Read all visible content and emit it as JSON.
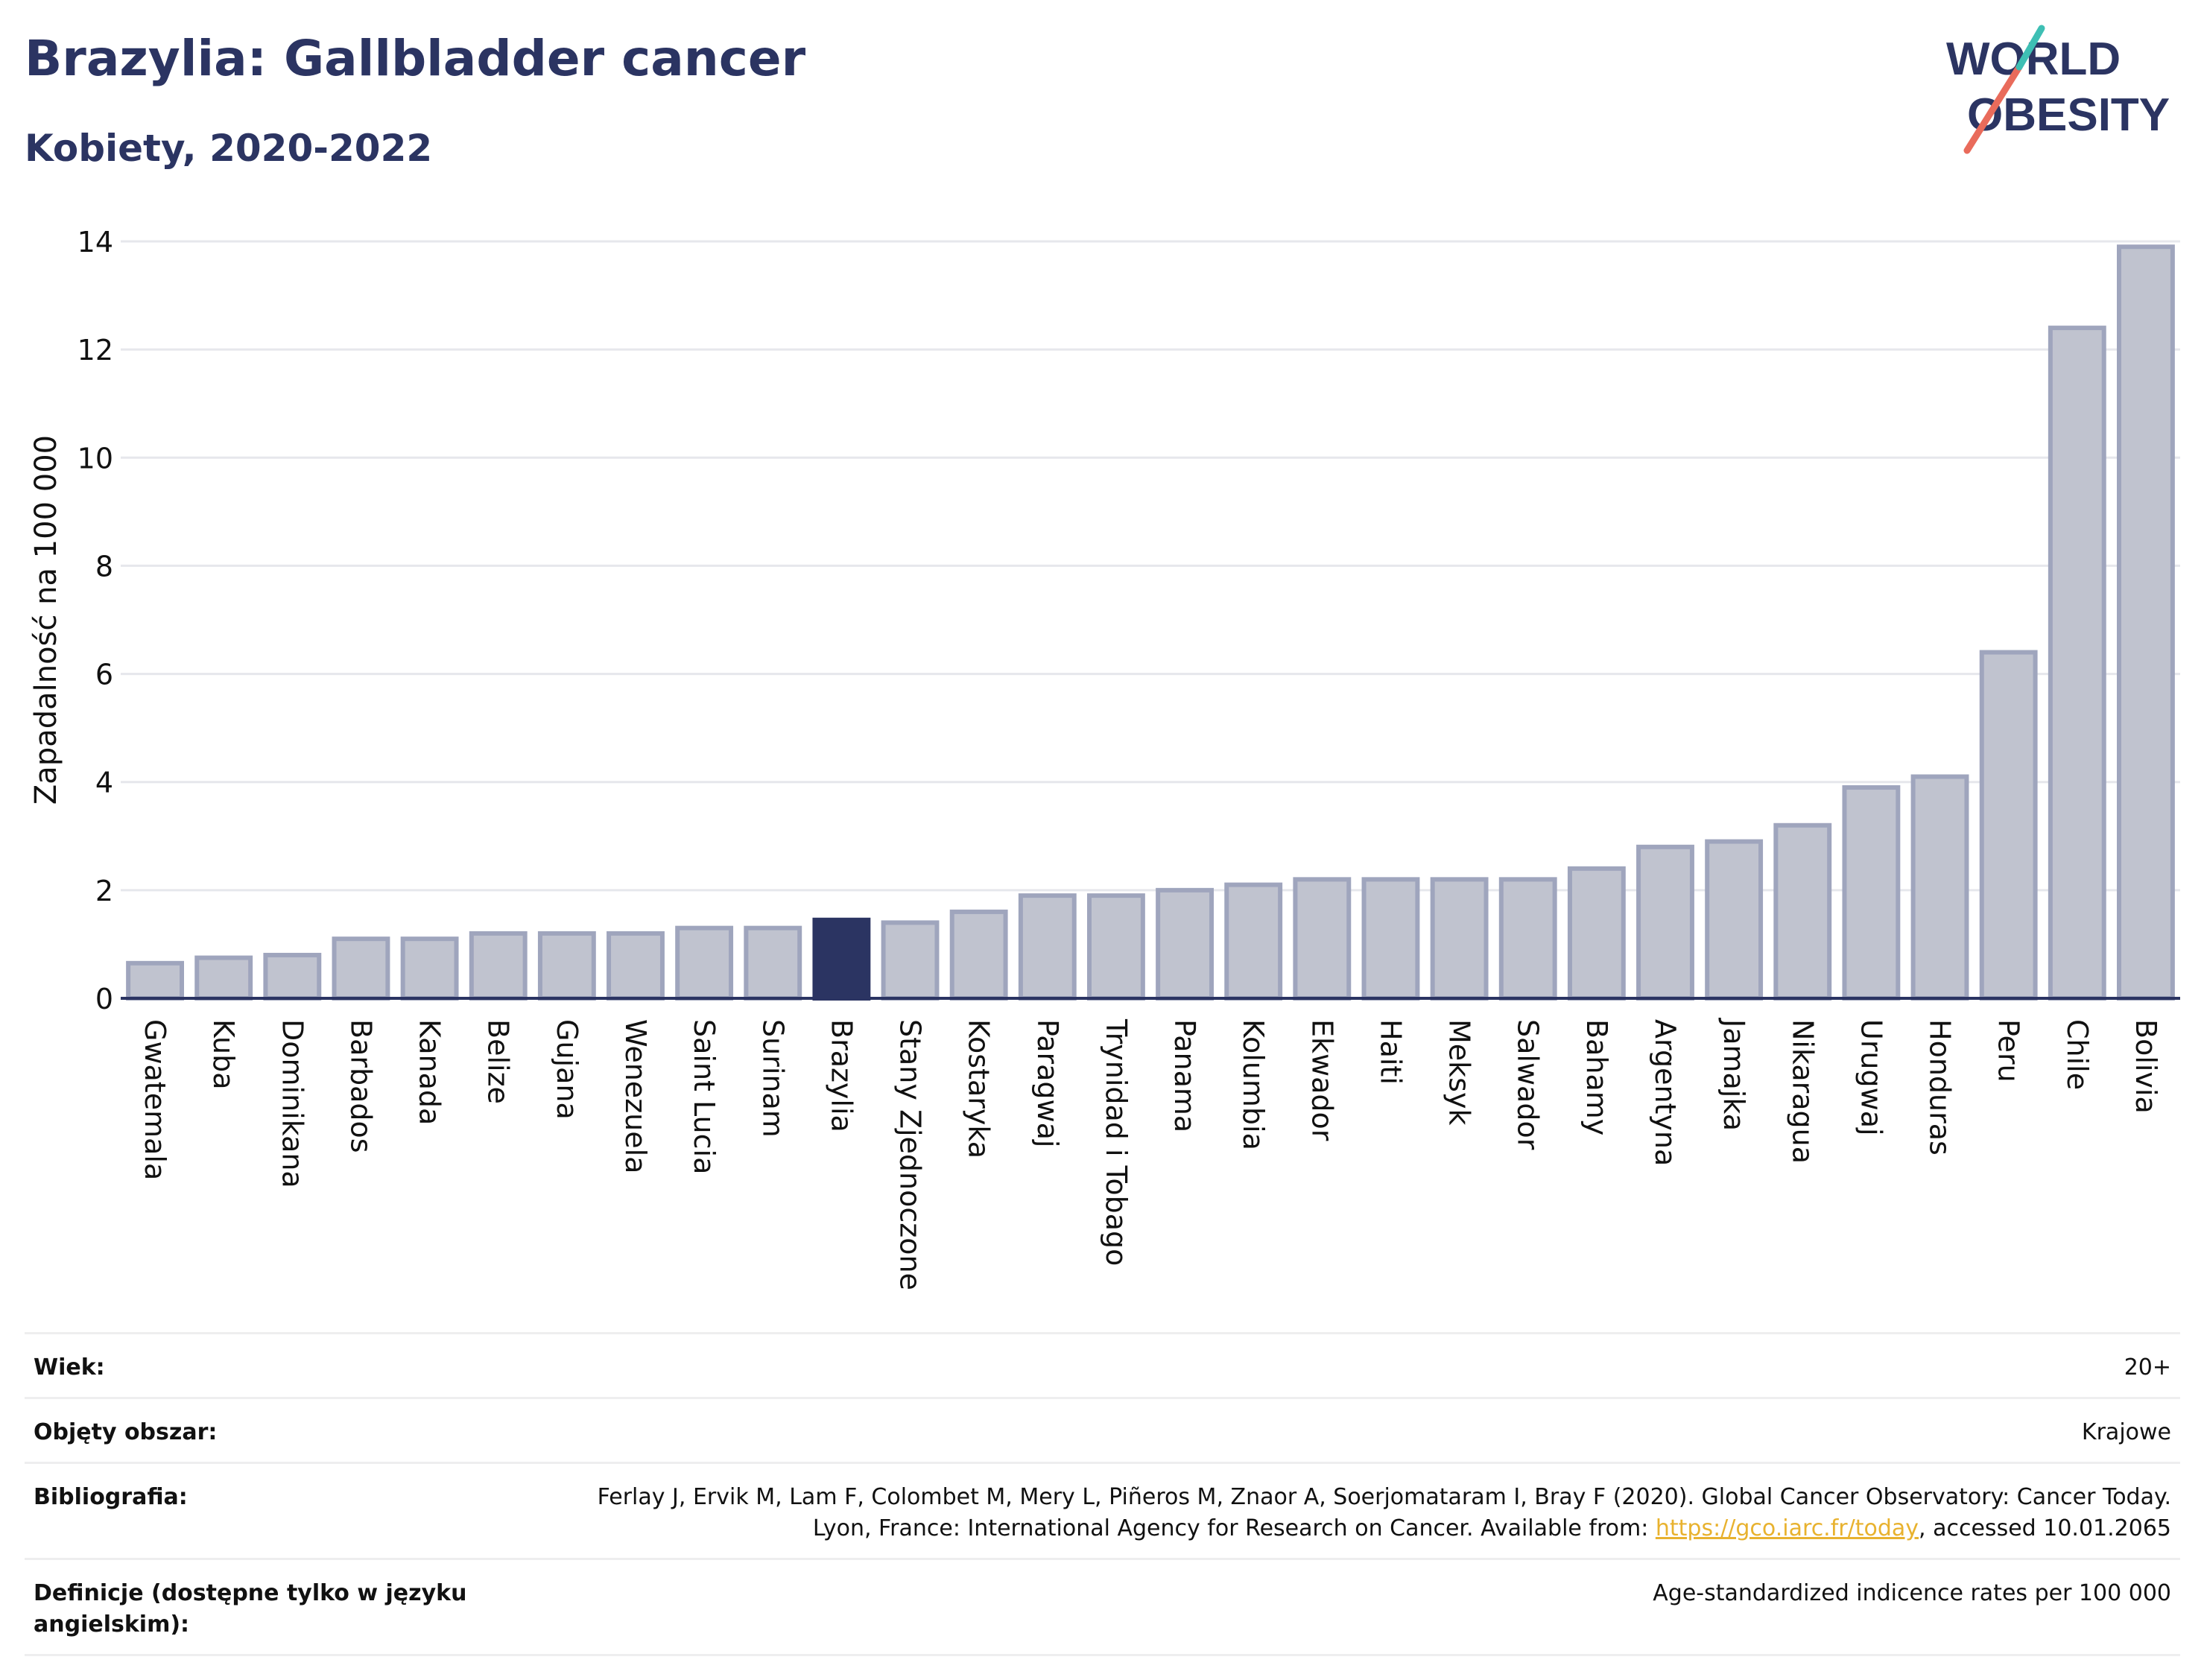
{
  "header": {
    "title": "Brazylia: Gallbladder cancer",
    "subtitle": "Kobiety, 2020-2022"
  },
  "logo": {
    "line1": "WORLD",
    "line2": "OBESITY",
    "colors": {
      "text": "#2b3462",
      "slash_red": "#e96b5b",
      "slash_teal": "#3ebfb4"
    }
  },
  "chart_data": {
    "type": "bar",
    "ylabel": "Zapadalność na 100 000",
    "ylim": [
      0,
      14
    ],
    "yticks": [
      0,
      2,
      4,
      6,
      8,
      10,
      12,
      14
    ],
    "highlight": "Brazylia",
    "colors": {
      "bar": "#c0c3cf",
      "bar_border": "#9fa5bd",
      "highlight": "#2b3462",
      "grid": "#e6e7ec",
      "axis": "#2b3462"
    },
    "categories": [
      "Gwatemala",
      "Kuba",
      "Dominikana",
      "Barbados",
      "Kanada",
      "Belize",
      "Gujana",
      "Wenezuela",
      "Saint Lucia",
      "Surinam",
      "Brazylia",
      "Stany Zjednoczone",
      "Kostaryka",
      "Paragwaj",
      "Trynidad i Tobago",
      "Panama",
      "Kolumbia",
      "Ekwador",
      "Haiti",
      "Meksyk",
      "Salwador",
      "Bahamy",
      "Argentyna",
      "Jamajka",
      "Nikaragua",
      "Urugwaj",
      "Honduras",
      "Peru",
      "Chile",
      "Bolivia"
    ],
    "values": [
      0.65,
      0.75,
      0.8,
      1.1,
      1.1,
      1.2,
      1.2,
      1.2,
      1.3,
      1.3,
      1.45,
      1.4,
      1.6,
      1.9,
      1.9,
      2.0,
      2.1,
      2.2,
      2.2,
      2.2,
      2.2,
      2.4,
      2.8,
      2.9,
      3.2,
      3.9,
      4.1,
      6.4,
      12.4,
      13.9
    ]
  },
  "meta": {
    "age_label": "Wiek:",
    "age_value": "20+",
    "area_label": "Objęty obszar:",
    "area_value": "Krajowe",
    "biblio_label": "Bibliografia:",
    "biblio_text1": "Ferlay J, Ervik M, Lam F, Colombet M, Mery L, Piñeros M, Znaor A, Soerjomataram I, Bray F (2020). Global Cancer Observatory: Cancer Today. Lyon, France: International Agency for Research on Cancer. Available from: ",
    "biblio_link": "https://gco.iarc.fr/today",
    "biblio_text2": ", accessed 10.01.2065",
    "def_label": "Definicje (dostępne tylko w języku angielskim):",
    "def_value": "Age-standardized indicence rates per 100 000"
  }
}
